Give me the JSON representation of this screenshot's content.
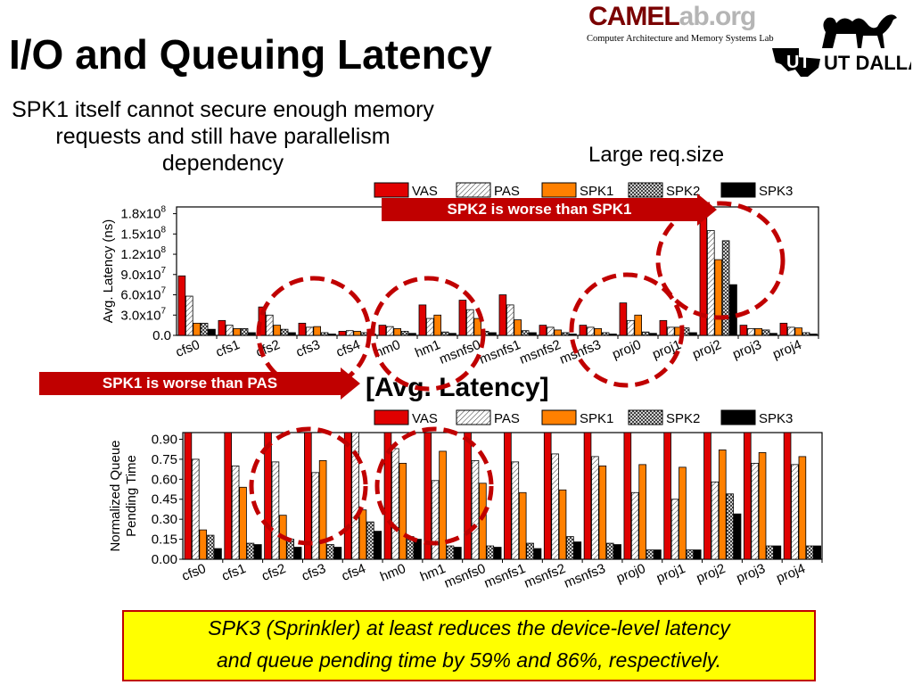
{
  "slide": {
    "title": "I/O and Queuing Latency",
    "subtitle": "SPK1 itself cannot secure enough memory requests and still have parallelism dependency",
    "note_large": "Large req.size",
    "logo_main": "CAMEL",
    "logo_lab": "ab.org",
    "logo_sub": "Computer Architecture and Memory Systems Lab",
    "utd_label": "UT DALLAS",
    "callout_spk2": "SPK2 is worse than SPK1",
    "callout_spk1": "SPK1 is worse than PAS",
    "avg_label": "[Avg. Latency]",
    "conclusion_line1": "SPK3 (Sprinkler) at least reduces the device-level latency",
    "conclusion_line2": "and queue pending time by 59% and 86%, respectively.",
    "colors": {
      "accent": "#c00000",
      "box_fill": "#ffff00"
    }
  },
  "chart_data": [
    {
      "type": "bar",
      "ylabel": "Avg. Latency (ns)",
      "ylim": [
        0,
        190000000
      ],
      "yticks": [
        {
          "value": 0,
          "label": "0.0"
        },
        {
          "value": 30000000,
          "label": "3.0x10",
          "exp": "7"
        },
        {
          "value": 60000000,
          "label": "6.0x10",
          "exp": "7"
        },
        {
          "value": 90000000,
          "label": "9.0x10",
          "exp": "7"
        },
        {
          "value": 120000000,
          "label": "1.2x10",
          "exp": "8"
        },
        {
          "value": 150000000,
          "label": "1.5x10",
          "exp": "8"
        },
        {
          "value": 180000000,
          "label": "1.8x10",
          "exp": "8"
        }
      ],
      "categories": [
        "cfs0",
        "cfs1",
        "cfs2",
        "cfs3",
        "cfs4",
        "hm0",
        "hm1",
        "msnfs0",
        "msnfs1",
        "msnfs2",
        "msnfs3",
        "proj0",
        "proj1",
        "proj2",
        "proj3",
        "proj4"
      ],
      "series": [
        {
          "name": "VAS",
          "values": [
            88000000,
            22000000,
            42000000,
            18000000,
            6000000,
            15000000,
            45000000,
            52000000,
            60000000,
            15000000,
            15000000,
            48000000,
            22000000,
            188000000,
            15000000,
            18000000
          ]
        },
        {
          "name": "PAS",
          "values": [
            58000000,
            15000000,
            30000000,
            12000000,
            7000000,
            13000000,
            25000000,
            38000000,
            45000000,
            12000000,
            12000000,
            22000000,
            12000000,
            155000000,
            10000000,
            12000000
          ]
        },
        {
          "name": "SPK1",
          "values": [
            18000000,
            10000000,
            15000000,
            13000000,
            6000000,
            10000000,
            30000000,
            25000000,
            23000000,
            8000000,
            10000000,
            30000000,
            12000000,
            112000000,
            10000000,
            11000000
          ]
        },
        {
          "name": "SPK2",
          "values": [
            18000000,
            10000000,
            9000000,
            4000000,
            4000000,
            6000000,
            5000000,
            6000000,
            7000000,
            4000000,
            4000000,
            5000000,
            11000000,
            140000000,
            8000000,
            4000000
          ]
        },
        {
          "name": "SPK3",
          "values": [
            9000000,
            4000000,
            4000000,
            2000000,
            2000000,
            3000000,
            3000000,
            4000000,
            4000000,
            2000000,
            2000000,
            3000000,
            4000000,
            75000000,
            3000000,
            2000000
          ]
        }
      ]
    },
    {
      "type": "bar",
      "ylabel": "Normalized Queue Pending Time",
      "ylim": [
        0,
        0.95
      ],
      "yticks": [
        {
          "value": 0,
          "label": "0.00"
        },
        {
          "value": 0.15,
          "label": "0.15"
        },
        {
          "value": 0.3,
          "label": "0.30"
        },
        {
          "value": 0.45,
          "label": "0.45"
        },
        {
          "value": 0.6,
          "label": "0.60"
        },
        {
          "value": 0.75,
          "label": "0.75"
        },
        {
          "value": 0.9,
          "label": "0.90"
        }
      ],
      "categories": [
        "cfs0",
        "cfs1",
        "cfs2",
        "cfs3",
        "cfs4",
        "hm0",
        "hm1",
        "msnfs0",
        "msnfs1",
        "msnfs2",
        "msnfs3",
        "proj0",
        "proj1",
        "proj2",
        "proj3",
        "proj4"
      ],
      "series": [
        {
          "name": "VAS",
          "values": [
            1,
            1,
            1,
            1,
            1,
            1,
            1,
            1,
            1,
            1,
            1,
            1,
            1,
            1,
            1,
            1
          ]
        },
        {
          "name": "PAS",
          "values": [
            0.75,
            0.7,
            0.73,
            0.65,
            0.95,
            0.83,
            0.59,
            0.74,
            0.73,
            0.79,
            0.77,
            0.5,
            0.45,
            0.58,
            0.72,
            0.71
          ]
        },
        {
          "name": "SPK1",
          "values": [
            0.22,
            0.54,
            0.33,
            0.74,
            0.37,
            0.72,
            0.81,
            0.57,
            0.5,
            0.52,
            0.7,
            0.71,
            0.69,
            0.82,
            0.8,
            0.77
          ]
        },
        {
          "name": "SPK2",
          "values": [
            0.18,
            0.12,
            0.15,
            0.11,
            0.28,
            0.17,
            0.1,
            0.1,
            0.12,
            0.17,
            0.12,
            0.07,
            0.07,
            0.49,
            0.1,
            0.1
          ]
        },
        {
          "name": "SPK3",
          "values": [
            0.08,
            0.11,
            0.09,
            0.09,
            0.21,
            0.15,
            0.09,
            0.09,
            0.08,
            0.13,
            0.11,
            0.07,
            0.07,
            0.34,
            0.1,
            0.1
          ]
        }
      ]
    }
  ]
}
